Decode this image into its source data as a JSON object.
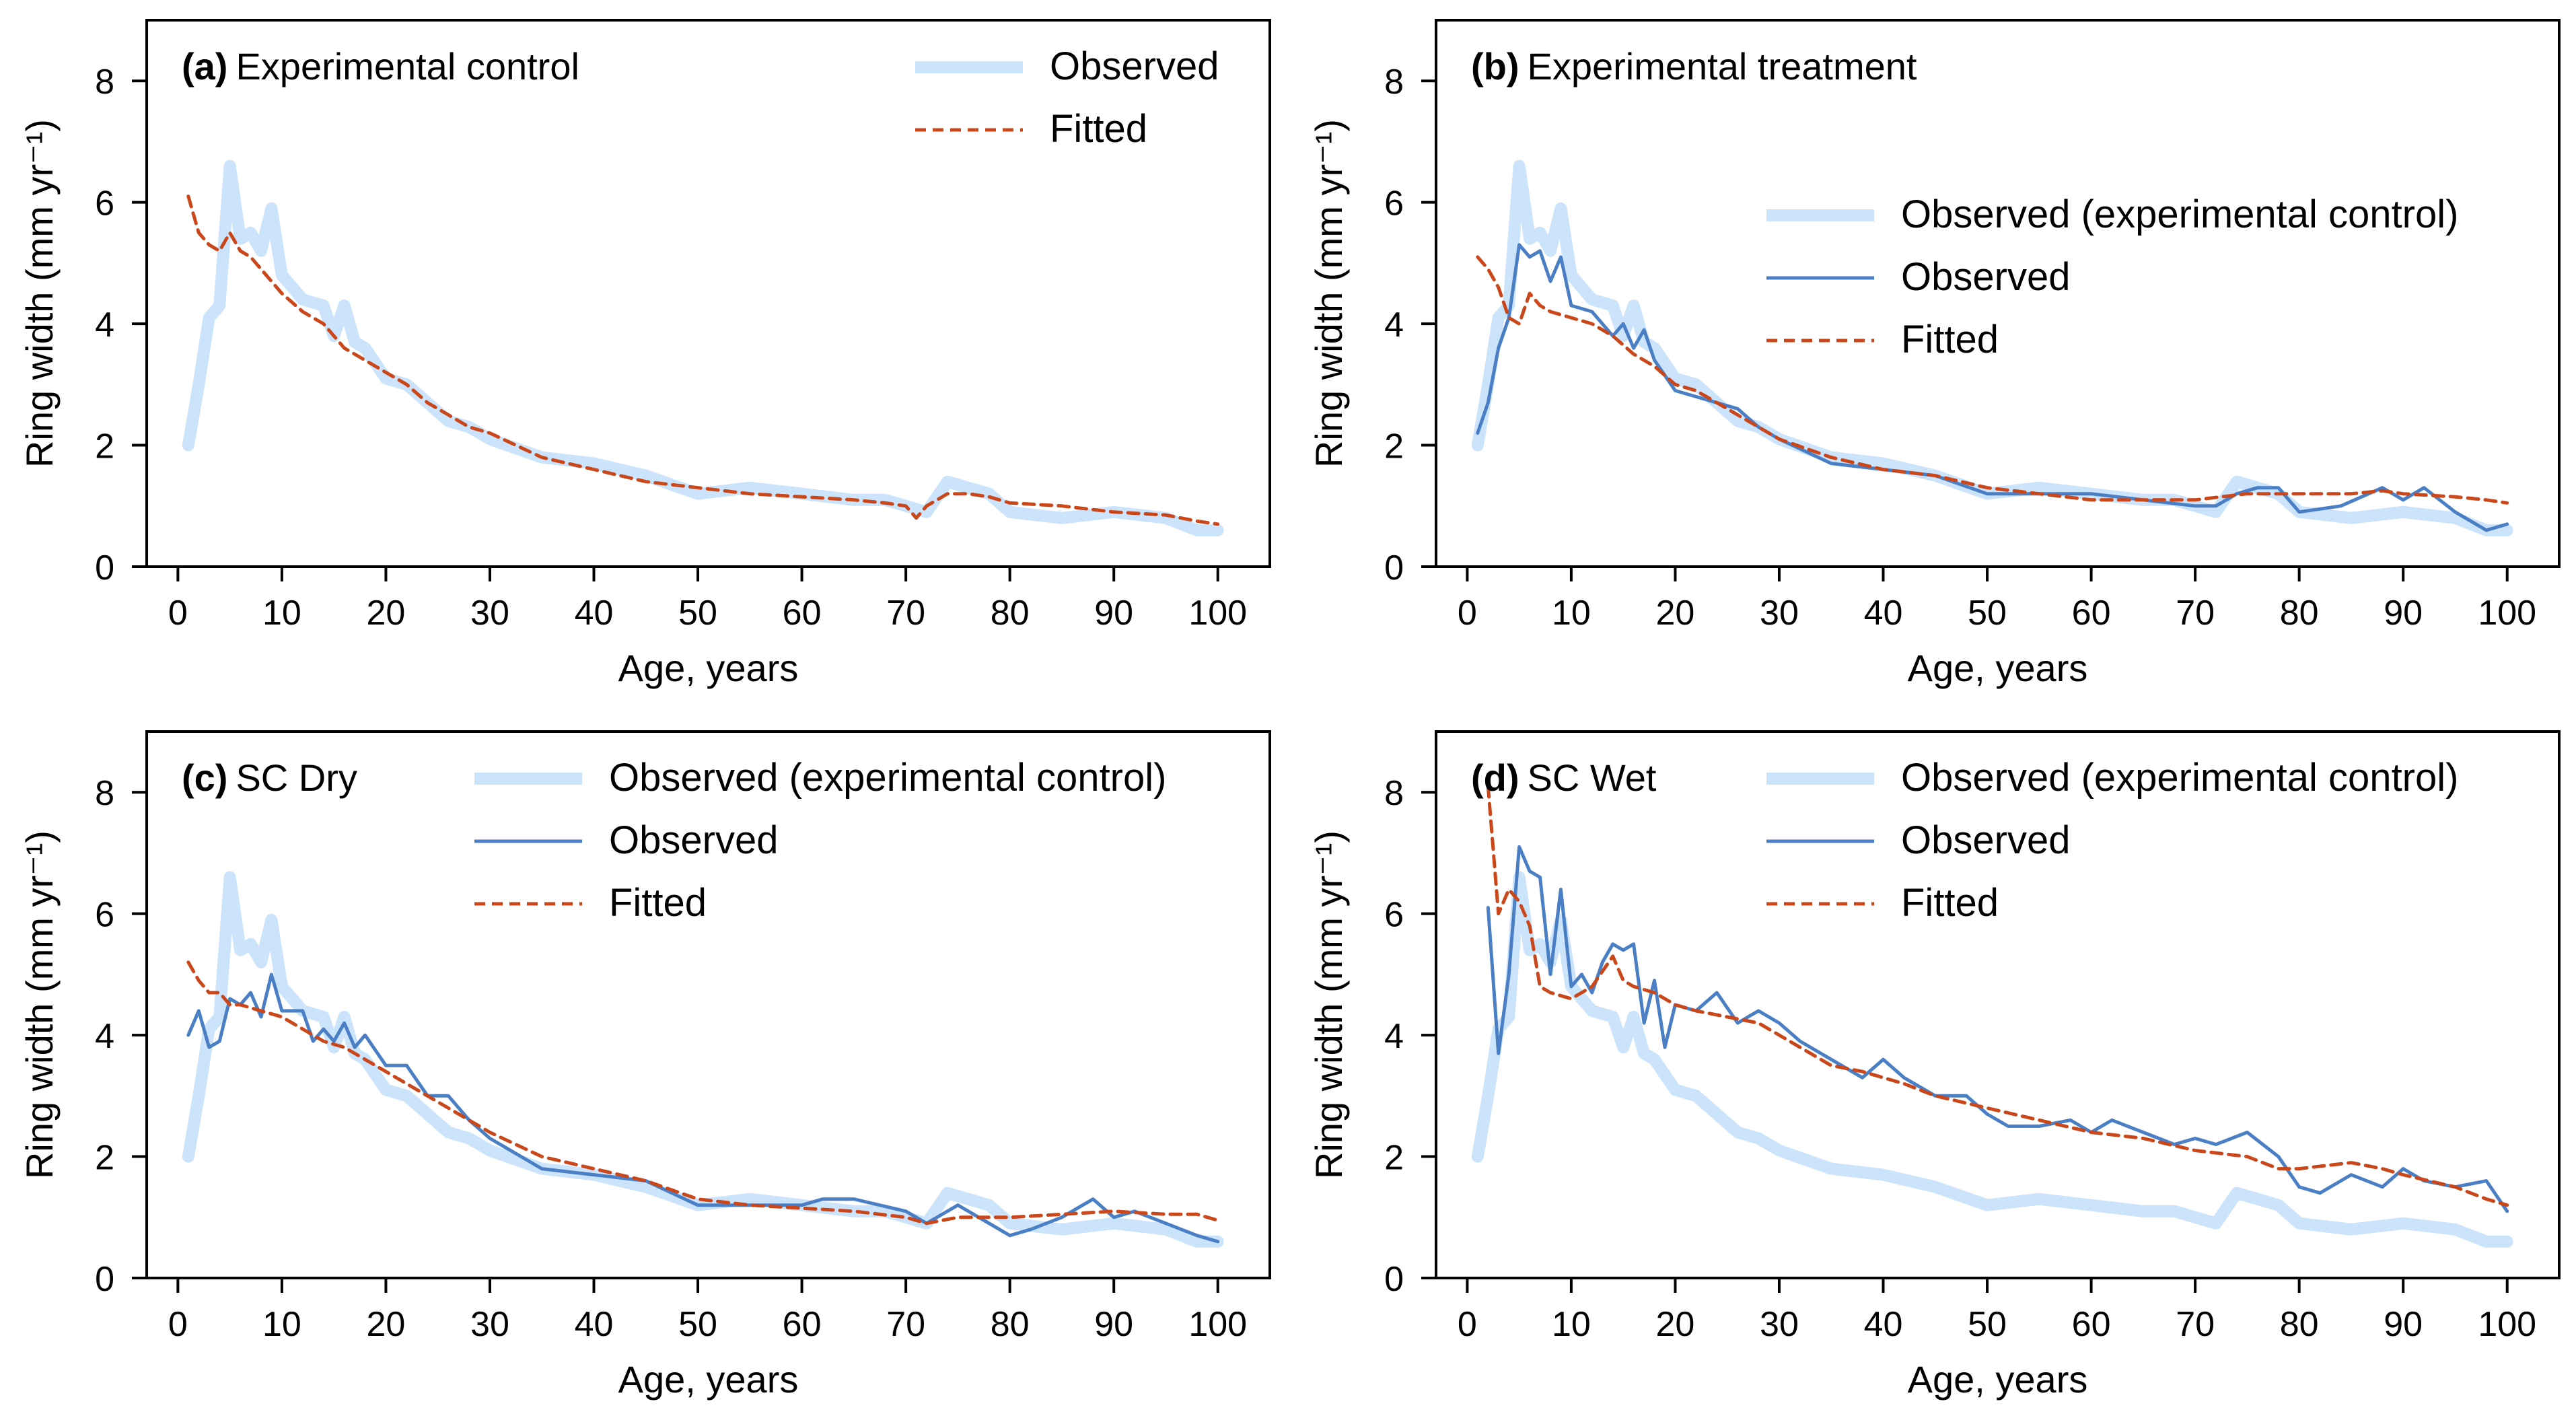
{
  "figure": {
    "panels": [
      "a",
      "b",
      "c",
      "d"
    ]
  },
  "colors": {
    "observed_control": "#cce4fb",
    "observed": "#4a7fc6",
    "fitted": "#c9471a",
    "axis": "#000000"
  },
  "chart_data": [
    {
      "type": "line",
      "id": "a",
      "title_letter": "(a)",
      "title": "Experimental control",
      "xlabel": "Age, years",
      "ylabel": "Ring width (mm yr⁻¹)",
      "xlim": [
        -3,
        105
      ],
      "ylim": [
        0,
        9
      ],
      "xticks": [
        0,
        10,
        20,
        30,
        40,
        50,
        60,
        70,
        80,
        90,
        100
      ],
      "yticks": [
        0,
        2,
        4,
        6,
        8
      ],
      "legend": [
        {
          "label": "Observed",
          "style": "observed_control"
        },
        {
          "label": "Fitted",
          "style": "fitted"
        }
      ],
      "series": [
        {
          "name": "Observed",
          "style": "observed_control",
          "x": [
            1,
            2,
            3,
            4,
            5,
            6,
            7,
            8,
            9,
            10,
            12,
            14,
            15,
            16,
            17,
            18,
            20,
            22,
            24,
            26,
            28,
            30,
            35,
            40,
            45,
            50,
            55,
            60,
            65,
            68,
            70,
            72,
            74,
            76,
            78,
            80,
            85,
            90,
            95,
            98,
            100
          ],
          "y": [
            2.0,
            3.0,
            4.1,
            4.3,
            6.6,
            5.4,
            5.5,
            5.2,
            5.9,
            4.8,
            4.4,
            4.3,
            3.8,
            4.3,
            3.7,
            3.6,
            3.1,
            3.0,
            2.7,
            2.4,
            2.3,
            2.1,
            1.8,
            1.7,
            1.5,
            1.2,
            1.3,
            1.2,
            1.1,
            1.1,
            1.0,
            0.9,
            1.4,
            1.3,
            1.2,
            0.9,
            0.8,
            0.9,
            0.8,
            0.6,
            0.6
          ]
        },
        {
          "name": "Fitted",
          "style": "fitted",
          "x": [
            1,
            2,
            3,
            4,
            5,
            6,
            7,
            8,
            9,
            10,
            12,
            14,
            15,
            16,
            18,
            20,
            22,
            24,
            26,
            28,
            30,
            35,
            40,
            45,
            50,
            55,
            60,
            65,
            68,
            70,
            71,
            72,
            74,
            76,
            78,
            80,
            85,
            90,
            95,
            98,
            100
          ],
          "y": [
            6.1,
            5.5,
            5.3,
            5.2,
            5.5,
            5.2,
            5.1,
            4.9,
            4.7,
            4.5,
            4.2,
            4.0,
            3.8,
            3.6,
            3.4,
            3.2,
            3.0,
            2.7,
            2.5,
            2.3,
            2.2,
            1.8,
            1.6,
            1.4,
            1.3,
            1.2,
            1.15,
            1.1,
            1.05,
            1.0,
            0.8,
            1.0,
            1.2,
            1.2,
            1.15,
            1.05,
            1.0,
            0.9,
            0.85,
            0.75,
            0.7
          ]
        }
      ]
    },
    {
      "type": "line",
      "id": "b",
      "title_letter": "(b)",
      "title": "Experimental treatment",
      "xlabel": "Age, years",
      "ylabel": "Ring width (mm yr⁻¹)",
      "xlim": [
        -3,
        105
      ],
      "ylim": [
        0,
        9
      ],
      "xticks": [
        0,
        10,
        20,
        30,
        40,
        50,
        60,
        70,
        80,
        90,
        100
      ],
      "yticks": [
        0,
        2,
        4,
        6,
        8
      ],
      "legend": [
        {
          "label": "Observed (experimental control)",
          "style": "observed_control"
        },
        {
          "label": "Observed",
          "style": "observed"
        },
        {
          "label": "Fitted",
          "style": "fitted"
        }
      ],
      "series": [
        {
          "name": "Observed (experimental control)",
          "style": "observed_control",
          "x": [
            1,
            2,
            3,
            4,
            5,
            6,
            7,
            8,
            9,
            10,
            12,
            14,
            15,
            16,
            17,
            18,
            20,
            22,
            24,
            26,
            28,
            30,
            35,
            40,
            45,
            50,
            55,
            60,
            65,
            68,
            70,
            72,
            74,
            76,
            78,
            80,
            85,
            90,
            95,
            98,
            100
          ],
          "y": [
            2.0,
            3.0,
            4.1,
            4.3,
            6.6,
            5.4,
            5.5,
            5.2,
            5.9,
            4.8,
            4.4,
            4.3,
            3.8,
            4.3,
            3.7,
            3.6,
            3.1,
            3.0,
            2.7,
            2.4,
            2.3,
            2.1,
            1.8,
            1.7,
            1.5,
            1.2,
            1.3,
            1.2,
            1.1,
            1.1,
            1.0,
            0.9,
            1.4,
            1.3,
            1.2,
            0.9,
            0.8,
            0.9,
            0.8,
            0.6,
            0.6
          ]
        },
        {
          "name": "Observed",
          "style": "observed",
          "x": [
            1,
            2,
            3,
            4,
            5,
            6,
            7,
            8,
            9,
            10,
            12,
            14,
            15,
            16,
            17,
            18,
            20,
            22,
            24,
            26,
            28,
            30,
            35,
            40,
            45,
            50,
            55,
            60,
            65,
            70,
            72,
            74,
            76,
            78,
            80,
            84,
            88,
            90,
            92,
            95,
            98,
            100
          ],
          "y": [
            2.2,
            2.7,
            3.6,
            4.1,
            5.3,
            5.1,
            5.2,
            4.7,
            5.1,
            4.3,
            4.2,
            3.8,
            4.0,
            3.6,
            3.9,
            3.4,
            2.9,
            2.8,
            2.7,
            2.6,
            2.3,
            2.1,
            1.7,
            1.6,
            1.5,
            1.2,
            1.2,
            1.2,
            1.1,
            1.0,
            1.0,
            1.2,
            1.3,
            1.3,
            0.9,
            1.0,
            1.3,
            1.1,
            1.3,
            0.9,
            0.6,
            0.7
          ]
        },
        {
          "name": "Fitted",
          "style": "fitted",
          "x": [
            1,
            2,
            3,
            4,
            5,
            6,
            7,
            8,
            10,
            12,
            14,
            16,
            18,
            20,
            22,
            25,
            28,
            30,
            35,
            40,
            45,
            50,
            55,
            60,
            65,
            70,
            75,
            80,
            85,
            88,
            90,
            95,
            98,
            100
          ],
          "y": [
            5.1,
            4.9,
            4.6,
            4.1,
            4.0,
            4.5,
            4.3,
            4.2,
            4.1,
            4.0,
            3.8,
            3.5,
            3.3,
            3.0,
            2.9,
            2.6,
            2.3,
            2.1,
            1.8,
            1.6,
            1.5,
            1.3,
            1.2,
            1.1,
            1.1,
            1.1,
            1.2,
            1.2,
            1.2,
            1.25,
            1.2,
            1.15,
            1.1,
            1.05
          ]
        }
      ]
    },
    {
      "type": "line",
      "id": "c",
      "title_letter": "(c)",
      "title": "SC Dry",
      "xlabel": "Age, years",
      "ylabel": "Ring width (mm yr⁻¹)",
      "xlim": [
        -3,
        105
      ],
      "ylim": [
        0,
        9
      ],
      "xticks": [
        0,
        10,
        20,
        30,
        40,
        50,
        60,
        70,
        80,
        90,
        100
      ],
      "yticks": [
        0,
        2,
        4,
        6,
        8
      ],
      "legend": [
        {
          "label": "Observed (experimental control)",
          "style": "observed_control"
        },
        {
          "label": "Observed",
          "style": "observed"
        },
        {
          "label": "Fitted",
          "style": "fitted"
        }
      ],
      "series": [
        {
          "name": "Observed (experimental control)",
          "style": "observed_control",
          "x": [
            1,
            2,
            3,
            4,
            5,
            6,
            7,
            8,
            9,
            10,
            12,
            14,
            15,
            16,
            17,
            18,
            20,
            22,
            24,
            26,
            28,
            30,
            35,
            40,
            45,
            50,
            55,
            60,
            65,
            68,
            70,
            72,
            74,
            76,
            78,
            80,
            85,
            90,
            95,
            98,
            100
          ],
          "y": [
            2.0,
            3.0,
            4.1,
            4.3,
            6.6,
            5.4,
            5.5,
            5.2,
            5.9,
            4.8,
            4.4,
            4.3,
            3.8,
            4.3,
            3.7,
            3.6,
            3.1,
            3.0,
            2.7,
            2.4,
            2.3,
            2.1,
            1.8,
            1.7,
            1.5,
            1.2,
            1.3,
            1.2,
            1.1,
            1.1,
            1.0,
            0.9,
            1.4,
            1.3,
            1.2,
            0.9,
            0.8,
            0.9,
            0.8,
            0.6,
            0.6
          ]
        },
        {
          "name": "Observed",
          "style": "observed",
          "x": [
            1,
            2,
            3,
            4,
            5,
            6,
            7,
            8,
            9,
            10,
            12,
            13,
            14,
            15,
            16,
            17,
            18,
            20,
            22,
            24,
            26,
            28,
            30,
            35,
            40,
            45,
            50,
            55,
            60,
            62,
            65,
            70,
            72,
            75,
            78,
            80,
            82,
            85,
            88,
            90,
            92,
            95,
            98,
            100
          ],
          "y": [
            4.0,
            4.4,
            3.8,
            3.9,
            4.6,
            4.5,
            4.7,
            4.3,
            5.0,
            4.4,
            4.4,
            3.9,
            4.1,
            3.9,
            4.2,
            3.8,
            4.0,
            3.5,
            3.5,
            3.0,
            3.0,
            2.6,
            2.3,
            1.8,
            1.7,
            1.6,
            1.2,
            1.2,
            1.2,
            1.3,
            1.3,
            1.1,
            0.9,
            1.2,
            0.9,
            0.7,
            0.8,
            1.0,
            1.3,
            1.0,
            1.1,
            0.9,
            0.7,
            0.6
          ]
        },
        {
          "name": "Fitted",
          "style": "fitted",
          "x": [
            1,
            2,
            3,
            4,
            5,
            6,
            8,
            10,
            12,
            14,
            16,
            18,
            20,
            22,
            25,
            28,
            30,
            35,
            40,
            45,
            50,
            55,
            60,
            65,
            70,
            72,
            75,
            80,
            85,
            90,
            95,
            98,
            100
          ],
          "y": [
            5.2,
            4.9,
            4.7,
            4.7,
            4.5,
            4.5,
            4.4,
            4.3,
            4.1,
            3.9,
            3.8,
            3.6,
            3.4,
            3.2,
            2.9,
            2.6,
            2.4,
            2.0,
            1.8,
            1.6,
            1.3,
            1.2,
            1.15,
            1.1,
            1.0,
            0.9,
            1.0,
            1.0,
            1.05,
            1.1,
            1.05,
            1.05,
            0.95
          ]
        }
      ]
    },
    {
      "type": "line",
      "id": "d",
      "title_letter": "(d)",
      "title": "SC Wet",
      "xlabel": "Age, years",
      "ylabel": "Ring width (mm yr⁻¹)",
      "xlim": [
        -3,
        105
      ],
      "ylim": [
        0,
        9
      ],
      "xticks": [
        0,
        10,
        20,
        30,
        40,
        50,
        60,
        70,
        80,
        90,
        100
      ],
      "yticks": [
        0,
        2,
        4,
        6,
        8
      ],
      "legend": [
        {
          "label": "Observed (experimental control)",
          "style": "observed_control"
        },
        {
          "label": "Observed",
          "style": "observed"
        },
        {
          "label": "Fitted",
          "style": "fitted"
        }
      ],
      "series": [
        {
          "name": "Observed (experimental control)",
          "style": "observed_control",
          "x": [
            1,
            2,
            3,
            4,
            5,
            6,
            7,
            8,
            9,
            10,
            12,
            14,
            15,
            16,
            17,
            18,
            20,
            22,
            24,
            26,
            28,
            30,
            35,
            40,
            45,
            50,
            55,
            60,
            65,
            68,
            70,
            72,
            74,
            76,
            78,
            80,
            85,
            90,
            95,
            98,
            100
          ],
          "y": [
            2.0,
            3.0,
            4.1,
            4.3,
            6.6,
            5.4,
            5.5,
            5.2,
            5.9,
            4.8,
            4.4,
            4.3,
            3.8,
            4.3,
            3.7,
            3.6,
            3.1,
            3.0,
            2.7,
            2.4,
            2.3,
            2.1,
            1.8,
            1.7,
            1.5,
            1.2,
            1.3,
            1.2,
            1.1,
            1.1,
            1.0,
            0.9,
            1.4,
            1.3,
            1.2,
            0.9,
            0.8,
            0.9,
            0.8,
            0.6,
            0.6
          ]
        },
        {
          "name": "Observed",
          "style": "observed",
          "x": [
            2,
            3,
            4,
            5,
            6,
            7,
            8,
            9,
            10,
            11,
            12,
            13,
            14,
            15,
            16,
            17,
            18,
            19,
            20,
            22,
            24,
            26,
            28,
            30,
            32,
            35,
            38,
            40,
            42,
            45,
            48,
            50,
            52,
            55,
            58,
            60,
            62,
            65,
            68,
            70,
            72,
            75,
            78,
            80,
            82,
            85,
            88,
            90,
            92,
            95,
            98,
            100
          ],
          "y": [
            6.1,
            3.7,
            5.0,
            7.1,
            6.7,
            6.6,
            5.0,
            6.4,
            4.8,
            5.0,
            4.7,
            5.2,
            5.5,
            5.4,
            5.5,
            4.2,
            4.9,
            3.8,
            4.5,
            4.4,
            4.7,
            4.2,
            4.4,
            4.2,
            3.9,
            3.6,
            3.3,
            3.6,
            3.3,
            3.0,
            3.0,
            2.7,
            2.5,
            2.5,
            2.6,
            2.4,
            2.6,
            2.4,
            2.2,
            2.3,
            2.2,
            2.4,
            2.0,
            1.5,
            1.4,
            1.7,
            1.5,
            1.8,
            1.6,
            1.5,
            1.6,
            1.1
          ]
        },
        {
          "name": "Fitted",
          "style": "fitted",
          "x": [
            2,
            3,
            4,
            5,
            6,
            7,
            8,
            10,
            12,
            14,
            15,
            16,
            18,
            20,
            22,
            25,
            28,
            30,
            32,
            35,
            38,
            40,
            42,
            45,
            50,
            55,
            60,
            65,
            70,
            75,
            78,
            80,
            85,
            88,
            90,
            95,
            98,
            100
          ],
          "y": [
            8.1,
            6.0,
            6.4,
            6.2,
            5.8,
            4.8,
            4.7,
            4.6,
            4.8,
            5.3,
            4.9,
            4.8,
            4.7,
            4.5,
            4.4,
            4.3,
            4.2,
            4.0,
            3.8,
            3.5,
            3.4,
            3.3,
            3.2,
            3.0,
            2.8,
            2.6,
            2.4,
            2.3,
            2.1,
            2.0,
            1.8,
            1.8,
            1.9,
            1.8,
            1.7,
            1.5,
            1.3,
            1.2
          ]
        }
      ]
    }
  ]
}
